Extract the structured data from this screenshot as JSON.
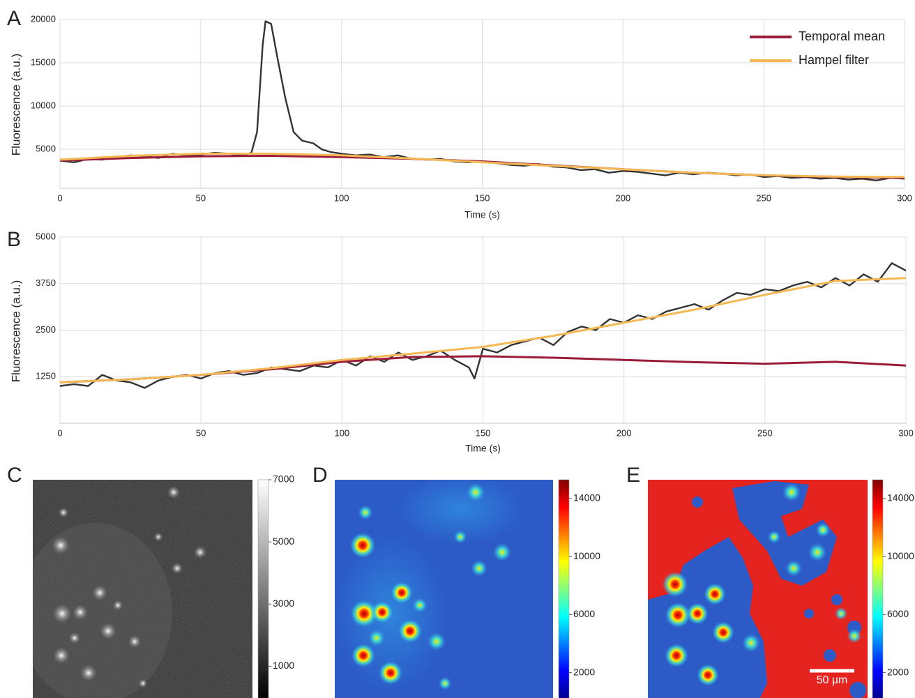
{
  "chart_data": [
    {
      "type": "line",
      "panel": "A",
      "xlabel": "Time (s)",
      "ylabel": "Fluorescence (a.u.)",
      "xlim": [
        0,
        300
      ],
      "ylim": [
        500,
        20000
      ],
      "xticks": [
        0,
        50,
        100,
        150,
        200,
        250,
        300
      ],
      "yticks": [
        5000,
        10000,
        15000,
        20000
      ],
      "grid": true,
      "legend": "upper right",
      "series": [
        {
          "color": "#333333",
          "x": [
            0,
            5,
            10,
            15,
            20,
            25,
            30,
            35,
            40,
            45,
            50,
            55,
            60,
            65,
            68,
            70,
            72,
            73,
            75,
            77,
            80,
            83,
            86,
            90,
            93,
            96,
            100,
            105,
            110,
            115,
            120,
            125,
            130,
            135,
            140,
            145,
            150,
            155,
            160,
            165,
            170,
            175,
            180,
            185,
            190,
            195,
            200,
            205,
            210,
            215,
            220,
            225,
            230,
            235,
            240,
            245,
            250,
            255,
            260,
            265,
            270,
            275,
            280,
            285,
            290,
            295,
            300
          ],
          "values": [
            3700,
            3500,
            3900,
            3800,
            4100,
            4300,
            4200,
            4000,
            4500,
            4300,
            4400,
            4600,
            4500,
            4300,
            4600,
            7000,
            17000,
            19800,
            19500,
            16000,
            11000,
            7000,
            6000,
            5700,
            5000,
            4700,
            4500,
            4300,
            4400,
            4100,
            4300,
            3900,
            3800,
            3900,
            3600,
            3500,
            3600,
            3400,
            3200,
            3100,
            3300,
            3000,
            2900,
            2600,
            2700,
            2300,
            2500,
            2400,
            2200,
            2000,
            2300,
            2100,
            2300,
            2200,
            2000,
            2100,
            1800,
            1900,
            1700,
            1800,
            1600,
            1700,
            1500,
            1600,
            1400,
            1700,
            1600
          ]
        },
        {
          "name": "Temporal mean",
          "color": "#9b1b3a",
          "x": [
            0,
            25,
            50,
            75,
            100,
            125,
            150,
            175,
            200,
            225,
            250,
            275,
            300
          ],
          "values": [
            3700,
            4000,
            4200,
            4250,
            4100,
            3900,
            3600,
            3150,
            2700,
            2300,
            2000,
            1800,
            1700
          ]
        },
        {
          "name": "Hampel filter",
          "color": "#f4b955",
          "x": [
            0,
            25,
            50,
            75,
            100,
            125,
            150,
            175,
            200,
            225,
            250,
            275,
            300
          ],
          "values": [
            3800,
            4250,
            4500,
            4500,
            4300,
            3950,
            3500,
            3100,
            2700,
            2300,
            2000,
            1850,
            1800
          ]
        }
      ]
    },
    {
      "type": "line",
      "panel": "B",
      "xlabel": "Time (s)",
      "ylabel": "Fluorescence (a.u.)",
      "xlim": [
        0,
        300
      ],
      "ylim": [
        0,
        5000
      ],
      "xticks": [
        0,
        50,
        100,
        150,
        200,
        250,
        300
      ],
      "yticks": [
        1250,
        2500,
        3750,
        5000
      ],
      "grid": true,
      "series": [
        {
          "color": "#333333",
          "x": [
            0,
            5,
            10,
            15,
            20,
            25,
            30,
            35,
            40,
            45,
            50,
            55,
            60,
            65,
            70,
            75,
            80,
            85,
            90,
            95,
            100,
            105,
            110,
            115,
            120,
            125,
            130,
            135,
            140,
            145,
            147,
            150,
            155,
            160,
            165,
            170,
            175,
            180,
            185,
            190,
            195,
            200,
            205,
            210,
            215,
            220,
            225,
            230,
            235,
            240,
            245,
            250,
            255,
            260,
            265,
            270,
            275,
            280,
            285,
            290,
            295,
            300
          ],
          "values": [
            1000,
            1050,
            1000,
            1300,
            1150,
            1100,
            950,
            1150,
            1250,
            1300,
            1200,
            1350,
            1400,
            1300,
            1350,
            1500,
            1450,
            1400,
            1550,
            1500,
            1700,
            1550,
            1800,
            1650,
            1900,
            1700,
            1800,
            1950,
            1700,
            1500,
            1200,
            2000,
            1900,
            2100,
            2200,
            2300,
            2100,
            2450,
            2600,
            2500,
            2800,
            2700,
            2900,
            2800,
            3000,
            3100,
            3200,
            3050,
            3300,
            3500,
            3450,
            3600,
            3550,
            3700,
            3800,
            3650,
            3900,
            3700,
            4000,
            3800,
            4300,
            4100
          ]
        },
        {
          "color": "#9b1b3a",
          "x": [
            0,
            25,
            50,
            75,
            100,
            125,
            150,
            175,
            200,
            225,
            250,
            275,
            300
          ],
          "values": [
            1100,
            1180,
            1300,
            1450,
            1650,
            1780,
            1800,
            1760,
            1700,
            1640,
            1600,
            1650,
            1550
          ]
        },
        {
          "color": "#f4b955",
          "x": [
            0,
            25,
            50,
            75,
            100,
            125,
            150,
            175,
            200,
            225,
            250,
            275,
            300
          ],
          "values": [
            1100,
            1180,
            1300,
            1480,
            1700,
            1870,
            2050,
            2350,
            2700,
            3050,
            3450,
            3820,
            3900
          ]
        }
      ]
    },
    {
      "type": "image",
      "panel": "C",
      "colormap": "gray",
      "clim": [
        0,
        7000
      ],
      "colorbar_ticks": [
        1000,
        3000,
        5000,
        7000
      ]
    },
    {
      "type": "image",
      "panel": "D",
      "colormap": "jet",
      "clim": [
        300,
        15300
      ],
      "colorbar_ticks": [
        2000,
        6000,
        10000,
        14000
      ]
    },
    {
      "type": "image",
      "panel": "E",
      "colormap": "jet",
      "clim": [
        300,
        15300
      ],
      "colorbar_ticks": [
        2000,
        6000,
        10000,
        14000
      ],
      "scalebar_label": "50 µm"
    }
  ]
}
